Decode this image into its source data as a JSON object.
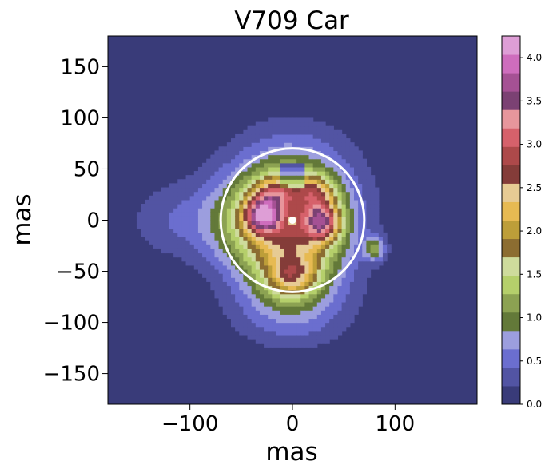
{
  "chart_data": {
    "type": "heatmap",
    "title": "V709 Car",
    "xlabel": "mas",
    "ylabel": "mas",
    "xlim": [
      -180,
      180
    ],
    "ylim": [
      -180,
      180
    ],
    "x_ticks": [
      -100,
      0,
      100
    ],
    "x_tick_labels": [
      "−100",
      "0",
      "100"
    ],
    "y_ticks": [
      150,
      100,
      50,
      0,
      -50,
      -100,
      -150
    ],
    "y_tick_labels": [
      "150",
      "100",
      "50",
      "0",
      "−50",
      "−100",
      "−150"
    ],
    "colorbar": {
      "min": 0.0,
      "max": 4.25,
      "ticks": [
        0.0,
        0.5,
        1.0,
        1.5,
        2.0,
        2.5,
        3.0,
        3.5,
        4.0
      ],
      "tick_labels": [
        "0.0",
        "0.5",
        "1.0",
        "1.5",
        "2.0",
        "2.5",
        "3.0",
        "3.5",
        "4.0"
      ],
      "colors": [
        "#393b79",
        "#5254a3",
        "#6b6ecf",
        "#9c9ede",
        "#637939",
        "#8ca252",
        "#b5cf6b",
        "#cedb9c",
        "#8c6d31",
        "#bd9e39",
        "#e7ba52",
        "#e7cb94",
        "#843c39",
        "#ad494a",
        "#d6616b",
        "#e7969c",
        "#7b4173",
        "#a55194",
        "#ce6dbd",
        "#de9ed6"
      ]
    },
    "overlay": {
      "circle_center": [
        0,
        0
      ],
      "circle_radius": 70,
      "center_marker": [
        0,
        0
      ],
      "color": "#ffffff"
    },
    "grid": false,
    "notes": "Extended emission map; brightest lobes around (-30,5) and (30,0) in mas."
  }
}
